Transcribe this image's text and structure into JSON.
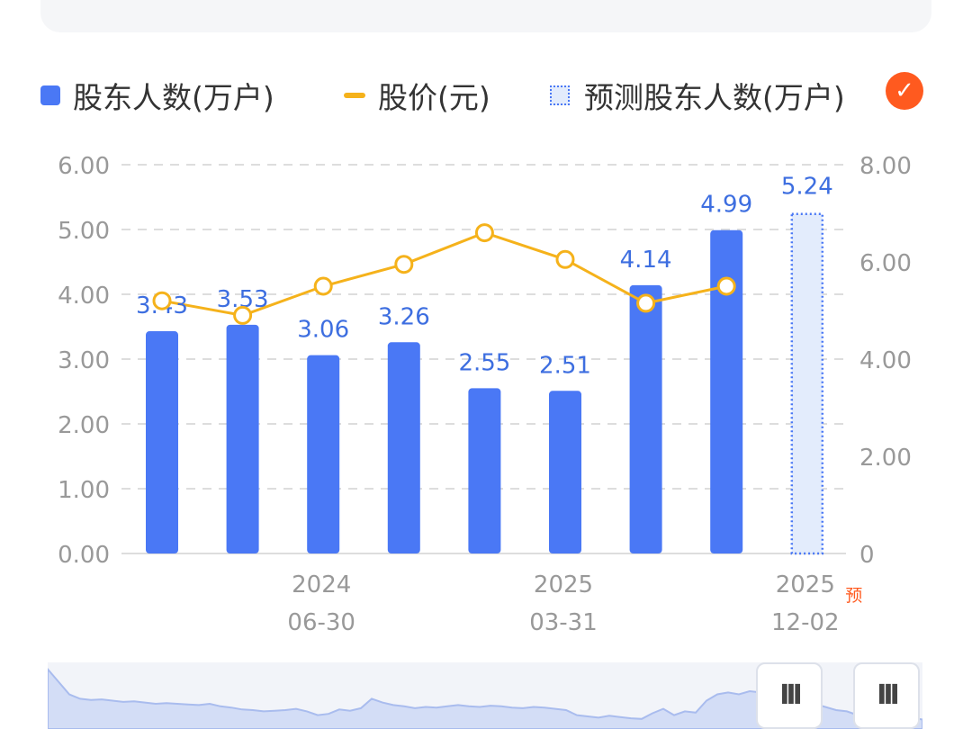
{
  "legend": {
    "bar_label": "股东人数(万户)",
    "line_label": "股价(元)",
    "forecast_label": "预测股东人数(万户)",
    "check_icon": "check-icon"
  },
  "colors": {
    "bar": "#4a78f5",
    "line": "#f5b21b",
    "forecast_fill": "#e3ecfc",
    "forecast_border": "#4a78f5",
    "label": "#3d6ee0",
    "accent": "#ff5a1f",
    "grid": "#dddddd",
    "axis_text": "#999999"
  },
  "chart_data": {
    "type": "bar",
    "left_axis": {
      "ticks": [
        "6.00",
        "5.00",
        "4.00",
        "3.00",
        "2.00",
        "1.00",
        "0.00"
      ],
      "range": [
        0,
        6
      ]
    },
    "right_axis": {
      "ticks": [
        "8.00",
        "6.00",
        "4.00",
        "2.00",
        "0"
      ],
      "range": [
        0,
        8
      ]
    },
    "x_labels": [
      {
        "index": 2,
        "year": "2024",
        "date": "06-30"
      },
      {
        "index": 5,
        "year": "2025",
        "date": "03-31"
      },
      {
        "index": 8,
        "year": "2025",
        "date": "12-02",
        "tag": "预"
      }
    ],
    "series": [
      {
        "name": "股东人数(万户)",
        "kind": "bar",
        "values": [
          3.43,
          3.53,
          3.06,
          3.26,
          2.55,
          2.51,
          4.14,
          4.99
        ],
        "labels": [
          "3.43",
          "3.53",
          "3.06",
          "3.26",
          "2.55",
          "2.51",
          "4.14",
          "4.99"
        ]
      },
      {
        "name": "股价(元)",
        "kind": "line",
        "values": [
          5.2,
          4.9,
          5.5,
          5.95,
          6.6,
          6.05,
          5.15,
          5.5
        ]
      },
      {
        "name": "预测股东人数(万户)",
        "kind": "forecast_bar",
        "index": 8,
        "value": 5.24,
        "label": "5.24"
      }
    ],
    "grid": true,
    "legend_position": "top"
  },
  "scroll": {
    "handle_glyph": "III",
    "overview": [
      0.95,
      0.75,
      0.55,
      0.48,
      0.46,
      0.47,
      0.45,
      0.43,
      0.44,
      0.42,
      0.4,
      0.41,
      0.4,
      0.39,
      0.38,
      0.4,
      0.36,
      0.34,
      0.31,
      0.3,
      0.28,
      0.29,
      0.3,
      0.32,
      0.28,
      0.22,
      0.24,
      0.31,
      0.29,
      0.33,
      0.48,
      0.42,
      0.38,
      0.36,
      0.33,
      0.35,
      0.34,
      0.36,
      0.38,
      0.36,
      0.35,
      0.37,
      0.36,
      0.34,
      0.33,
      0.35,
      0.34,
      0.32,
      0.3,
      0.22,
      0.2,
      0.18,
      0.21,
      0.19,
      0.17,
      0.16,
      0.25,
      0.32,
      0.22,
      0.28,
      0.26,
      0.45,
      0.55,
      0.58,
      0.55,
      0.6,
      0.58,
      0.52,
      0.5,
      0.48,
      0.45,
      0.4,
      0.35,
      0.3,
      0.28,
      0.22,
      0.25,
      0.22,
      0.25,
      0.2,
      0.18,
      0.15
    ]
  }
}
